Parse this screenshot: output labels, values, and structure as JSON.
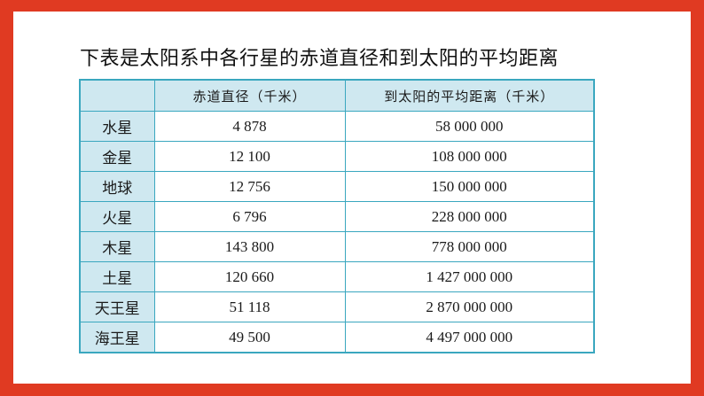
{
  "title": "下表是太阳系中各行星的赤道直径和到太阳的平均距离",
  "table": {
    "headers": [
      "",
      "赤道直径（千米）",
      "到太阳的平均距离（千米）"
    ],
    "rows": [
      {
        "planet": "水星",
        "diameter": "4 878",
        "distance": "58 000 000"
      },
      {
        "planet": "金星",
        "diameter": "12 100",
        "distance": "108 000 000"
      },
      {
        "planet": "地球",
        "diameter": "12 756",
        "distance": "150 000 000"
      },
      {
        "planet": "火星",
        "diameter": "6 796",
        "distance": "228 000 000"
      },
      {
        "planet": "木星",
        "diameter": "143 800",
        "distance": "778 000 000"
      },
      {
        "planet": "土星",
        "diameter": "120 660",
        "distance": "1 427 000 000"
      },
      {
        "planet": "天王星",
        "diameter": "51 118",
        "distance": "2 870 000 000"
      },
      {
        "planet": "海王星",
        "diameter": "49 500",
        "distance": "4 497 000 000"
      }
    ]
  },
  "colors": {
    "frame": "#e03a22",
    "table_border": "#3aa7bf",
    "header_fill": "#cfe8f0"
  }
}
